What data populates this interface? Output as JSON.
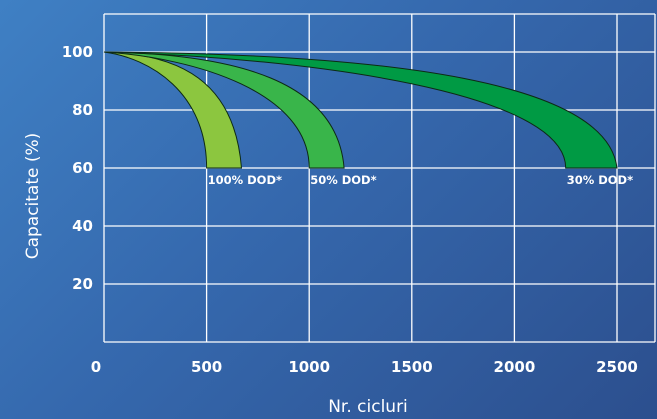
{
  "chart_data": {
    "type": "area",
    "xlabel": "Nr. cicluri",
    "ylabel": "Capacitate (%)",
    "xlim": [
      0,
      2500
    ],
    "ylim": [
      0,
      110
    ],
    "x_ticks": [
      0,
      500,
      1000,
      1500,
      2000,
      2500
    ],
    "y_ticks": [
      20,
      40,
      60,
      80,
      100
    ],
    "grid": true,
    "series": [
      {
        "name": "100% DOD*",
        "color": "#8cc63f",
        "start": [
          0,
          100
        ],
        "end_range": [
          500,
          670
        ],
        "end_capacity": 60
      },
      {
        "name": "50% DOD*",
        "color": "#39b54a",
        "start": [
          0,
          100
        ],
        "end_range": [
          1000,
          1170
        ],
        "end_capacity": 60
      },
      {
        "name": "30% DOD*",
        "color": "#009a44",
        "start": [
          0,
          100
        ],
        "end_range": [
          2250,
          2500
        ],
        "end_capacity": 60
      }
    ]
  }
}
